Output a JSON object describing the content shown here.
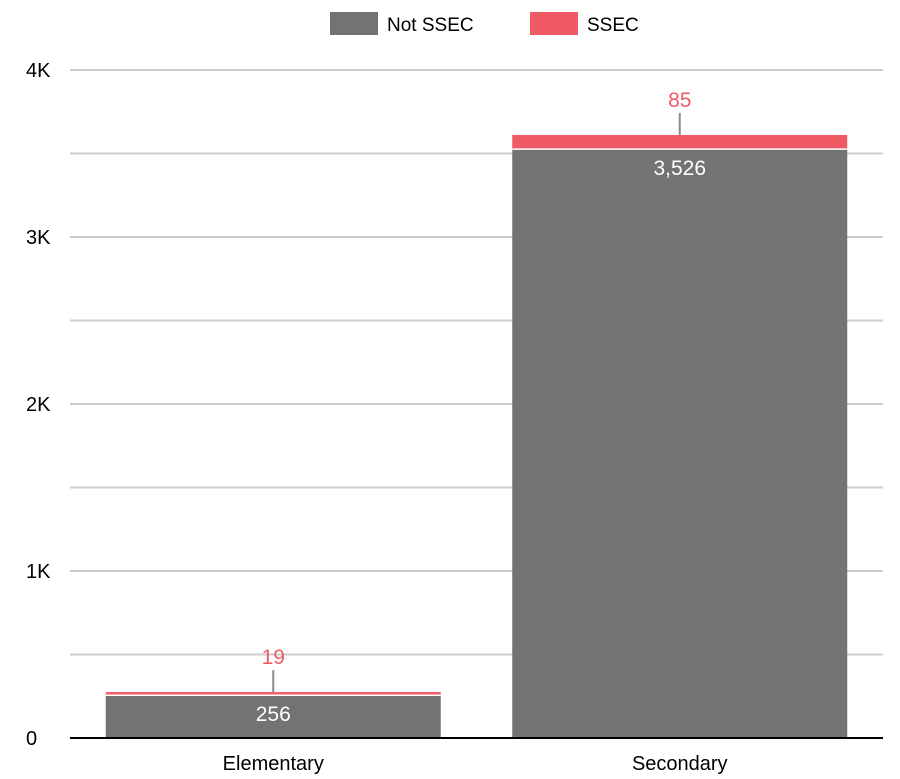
{
  "chart_data": {
    "type": "bar",
    "stacked": true,
    "categories": [
      "Elementary",
      "Secondary"
    ],
    "series": [
      {
        "name": "Not SSEC",
        "values": [
          256,
          3526
        ],
        "color": "#737373",
        "label_position": "inside"
      },
      {
        "name": "SSEC",
        "values": [
          19,
          85
        ],
        "color": "#f05a64",
        "label_position": "above"
      }
    ],
    "yaxis": {
      "ticks": [
        0,
        1000,
        2000,
        3000,
        4000
      ],
      "tick_labels": [
        "0",
        "1K",
        "2K",
        "3K",
        "4K"
      ],
      "minor_gridlines": true
    },
    "ylim": [
      0,
      4000
    ],
    "grid": true,
    "legend": "top-center",
    "value_labels": true
  }
}
